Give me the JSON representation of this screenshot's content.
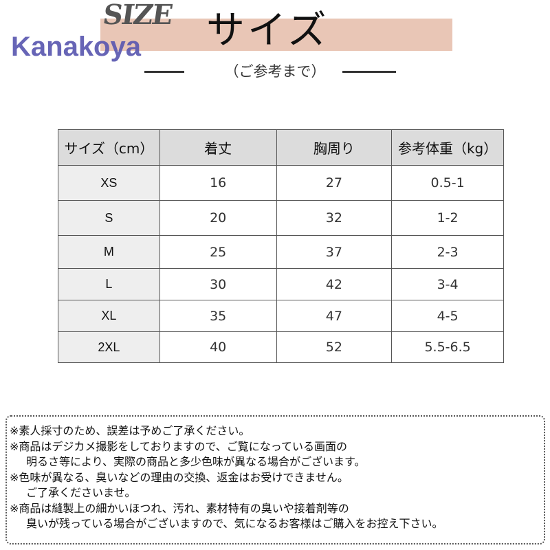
{
  "header": {
    "brand": "Kanakoya",
    "logo_text": "SIZE",
    "title": "サイズ",
    "subtitle": "（ご参考まで）",
    "band_color": "#e9c6b6",
    "brand_color": "#5b58b0"
  },
  "table": {
    "columns": [
      "サイズ（cm）",
      "着丈",
      "胸周り",
      "参考体重（kg）"
    ],
    "rows": [
      [
        "XS",
        "16",
        "27",
        "0.5-1"
      ],
      [
        "S",
        "20",
        "32",
        "1-2"
      ],
      [
        "M",
        "25",
        "37",
        "2-3"
      ],
      [
        "L",
        "30",
        "42",
        "3-4"
      ],
      [
        "XL",
        "35",
        "47",
        "4-5"
      ],
      [
        "2XL",
        "40",
        "52",
        "5.5-6.5"
      ]
    ]
  },
  "notes": [
    {
      "text": "※素人採寸のため、誤差は予めご了承ください。",
      "indent": false
    },
    {
      "text": "※商品はデジカメ撮影をしておりますので、ご覧になっている画面の",
      "indent": false
    },
    {
      "text": "明るさ等により、実際の商品と多少色味が異なる場合がございます。",
      "indent": true
    },
    {
      "text": "※色味が異なる、臭いなどの理由の交換、返金はお受けできません。",
      "indent": false
    },
    {
      "text": "ご了承くださいませ。",
      "indent": true
    },
    {
      "text": "※商品は縫製上の細かいほつれ、汚れ、素材特有の臭いや接着剤等の",
      "indent": false
    },
    {
      "text": "臭いが残っている場合がございますので、気になるお客様はご購入をお控え下さい。",
      "indent": true
    }
  ]
}
